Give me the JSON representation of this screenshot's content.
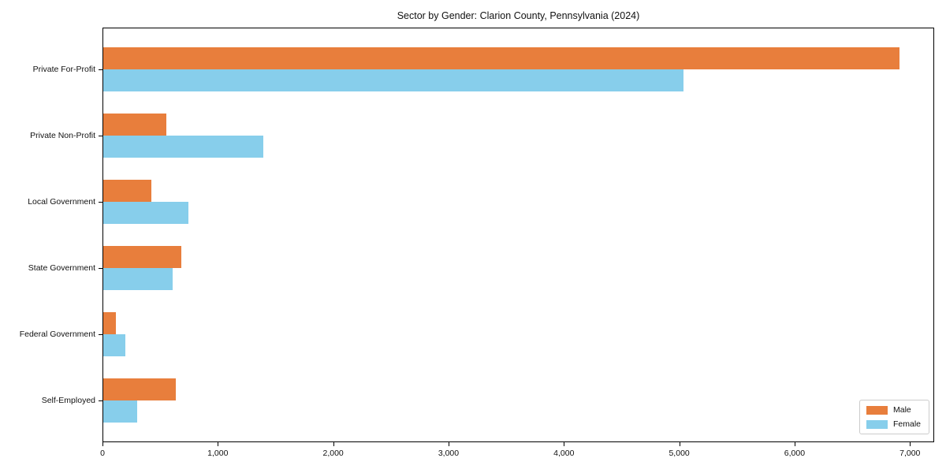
{
  "title": "Sector by Gender: Clarion County, Pennsylvania (2024)",
  "colors": {
    "male": "#E87E3C",
    "female": "#87CEEB",
    "axis": "#000000",
    "legend_border": "#cccccc",
    "background": "#ffffff",
    "text": "#111111"
  },
  "chart_data": {
    "type": "bar",
    "orientation": "horizontal",
    "title": "Sector by Gender: Clarion County, Pennsylvania (2024)",
    "categories": [
      "Private For-Profit",
      "Private Non-Profit",
      "Local Government",
      "State Government",
      "Federal Government",
      "Self-Employed"
    ],
    "series": [
      {
        "name": "Male",
        "color": "#E87E3C",
        "values": [
          6900,
          550,
          420,
          675,
          110,
          630
        ]
      },
      {
        "name": "Female",
        "color": "#87CEEB",
        "values": [
          5030,
          1390,
          735,
          600,
          190,
          295
        ]
      }
    ],
    "xlabel": "",
    "ylabel": "",
    "xlim": [
      0,
      7210
    ],
    "x_ticks": [
      0,
      1000,
      2000,
      3000,
      4000,
      5000,
      6000,
      7000
    ],
    "x_tick_labels": [
      "0",
      "1,000",
      "2,000",
      "3,000",
      "4,000",
      "5,000",
      "6,000",
      "7,000"
    ],
    "grid": false,
    "legend": {
      "position": "lower right",
      "entries": [
        "Male",
        "Female"
      ]
    }
  }
}
